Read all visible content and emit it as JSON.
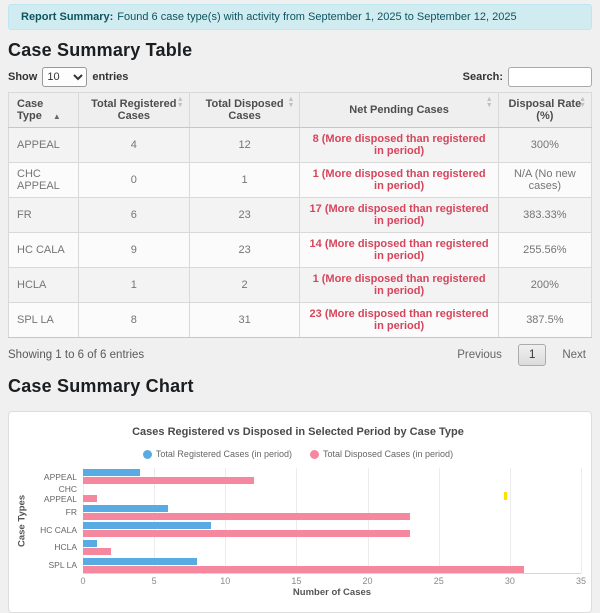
{
  "banner": {
    "label": "Report Summary:",
    "text": "Found 6 case type(s) with activity from September 1, 2025 to September 12, 2025"
  },
  "table_section": {
    "title": "Case Summary Table",
    "show_label": "Show",
    "entries_label": "entries",
    "page_length": "10",
    "search_label": "Search:",
    "search_value": "",
    "columns": [
      "Case Type",
      "Total Registered Cases",
      "Total Disposed Cases",
      "Net Pending Cases",
      "Disposal Rate (%)"
    ],
    "rows": [
      {
        "case_type": "APPEAL",
        "registered": "4",
        "disposed": "12",
        "pending": "8 (More disposed than registered in period)",
        "rate": "300%"
      },
      {
        "case_type": "CHC APPEAL",
        "registered": "0",
        "disposed": "1",
        "pending": "1 (More disposed than registered in period)",
        "rate": "N/A (No new cases)"
      },
      {
        "case_type": "FR",
        "registered": "6",
        "disposed": "23",
        "pending": "17 (More disposed than registered in period)",
        "rate": "383.33%"
      },
      {
        "case_type": "HC CALA",
        "registered": "9",
        "disposed": "23",
        "pending": "14 (More disposed than registered in period)",
        "rate": "255.56%"
      },
      {
        "case_type": "HCLA",
        "registered": "1",
        "disposed": "2",
        "pending": "1 (More disposed than registered in period)",
        "rate": "200%"
      },
      {
        "case_type": "SPL LA",
        "registered": "8",
        "disposed": "31",
        "pending": "23 (More disposed than registered in period)",
        "rate": "387.5%"
      }
    ],
    "info": "Showing 1 to 6 of 6 entries",
    "pagination": {
      "previous": "Previous",
      "current_page": "1",
      "next": "Next"
    }
  },
  "chart_section": {
    "title": "Case Summary Chart"
  },
  "chart_data": {
    "type": "bar",
    "orientation": "horizontal",
    "title": "Cases Registered vs Disposed in Selected Period by Case Type",
    "categories": [
      "APPEAL",
      "CHC APPEAL",
      "FR",
      "HC CALA",
      "HCLA",
      "SPL LA"
    ],
    "series": [
      {
        "name": "Total Registered Cases (in period)",
        "color": "#58abe3",
        "values": [
          4,
          0,
          6,
          9,
          1,
          8
        ]
      },
      {
        "name": "Total Disposed Cases (in period)",
        "color": "#f5879f",
        "values": [
          12,
          1,
          23,
          23,
          2,
          31
        ]
      }
    ],
    "xlabel": "Number of Cases",
    "ylabel": "Case Types",
    "xlim": [
      0,
      35
    ],
    "xticks": [
      0,
      5,
      10,
      15,
      20,
      25,
      30,
      35
    ],
    "grid": true,
    "legend_position": "top"
  }
}
